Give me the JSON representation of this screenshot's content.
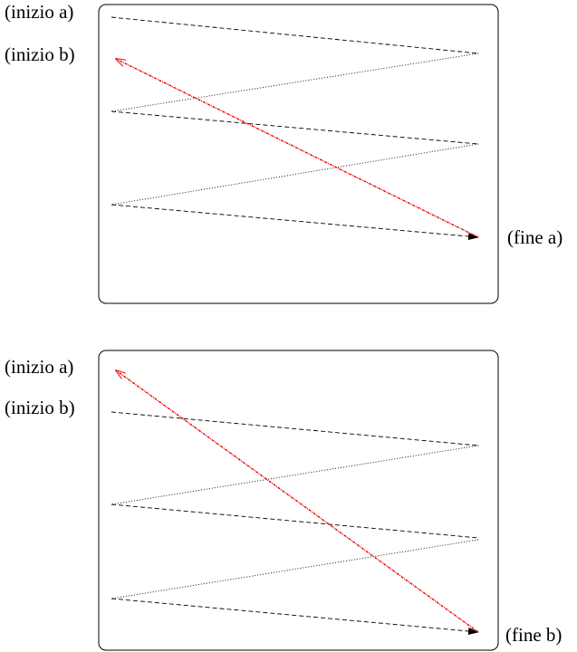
{
  "panels": [
    {
      "labels": {
        "start_a": "(inizio a)",
        "start_b": "(inizio b)",
        "end": "(fine a)"
      }
    },
    {
      "labels": {
        "start_a": "(inizio a)",
        "start_b": "(inizio b)",
        "end": "(fine b)"
      }
    }
  ]
}
